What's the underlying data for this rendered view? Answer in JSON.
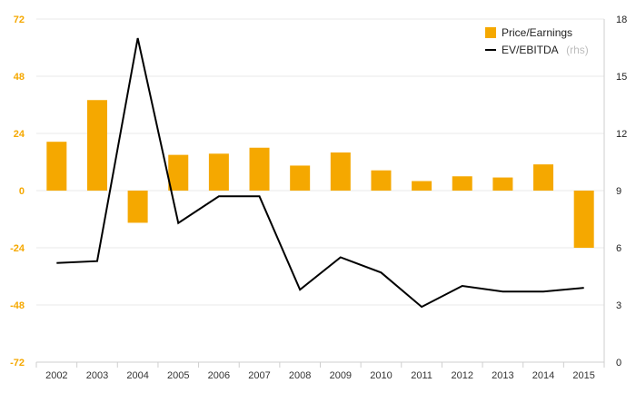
{
  "chart_data": {
    "type": "bar+line",
    "title": "",
    "categories": [
      "2002",
      "2003",
      "2004",
      "2005",
      "2006",
      "2007",
      "2008",
      "2009",
      "2010",
      "2011",
      "2012",
      "2013",
      "2014",
      "2015"
    ],
    "series": [
      {
        "name": "Price/Earnings",
        "type": "bar",
        "axis": "left",
        "color": "#f5a800",
        "values": [
          20.5,
          38,
          -13.5,
          15,
          15.5,
          18,
          10.5,
          16,
          8.5,
          4,
          6,
          5.5,
          11,
          -24
        ]
      },
      {
        "name": "EV/EBITDA",
        "name_suffix": "(rhs)",
        "type": "line",
        "axis": "right",
        "color": "#000000",
        "values": [
          5.2,
          5.3,
          17.0,
          7.3,
          8.7,
          8.7,
          3.8,
          5.5,
          4.7,
          2.9,
          4.0,
          3.7,
          3.7,
          3.9
        ]
      }
    ],
    "left_axis": {
      "ticks": [
        "72",
        "48",
        "24",
        "0",
        "-24",
        "-48",
        "-72"
      ],
      "ylim": [
        -72,
        72
      ]
    },
    "right_axis": {
      "ticks": [
        "18",
        "15",
        "12",
        "9",
        "6",
        "3",
        "0"
      ],
      "ylim": [
        0,
        18
      ]
    },
    "grid": true,
    "legend_position": "top-right"
  }
}
